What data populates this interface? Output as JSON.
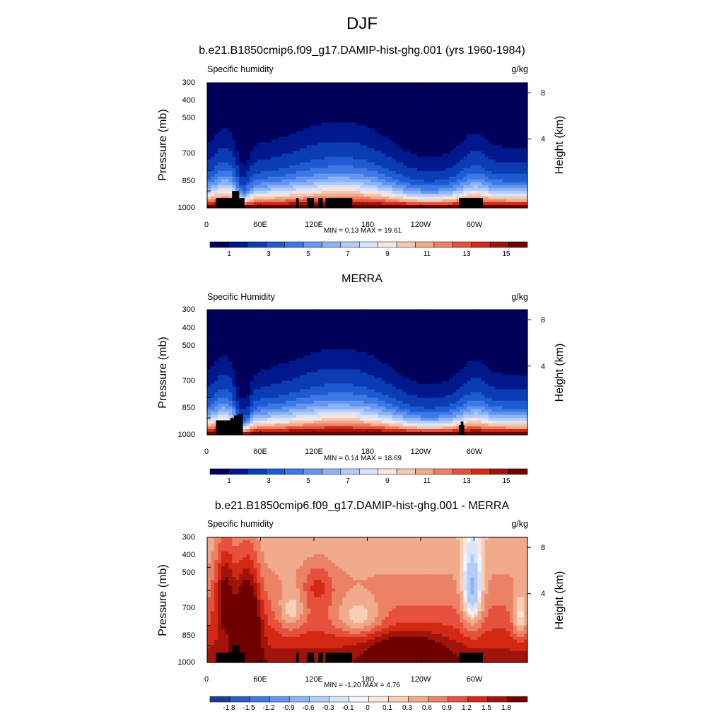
{
  "title": "DJF",
  "colors": {
    "bluered": [
      "#00005a",
      "#00188c",
      "#0a3cb4",
      "#1e5ad2",
      "#3c78e6",
      "#6496f0",
      "#8cb4f5",
      "#b4cdf8",
      "#d7e4fa",
      "#fae6dc",
      "#f5c8b4",
      "#f0aa8c",
      "#eb8264",
      "#e6503c",
      "#d22814",
      "#a0140a",
      "#6e0000"
    ],
    "diff": [
      "#1e3c96",
      "#2d5ac3",
      "#3c78e6",
      "#6496f0",
      "#8cb4f5",
      "#b4cdf8",
      "#d7e4fa",
      "#f5f5ff",
      "#fae6dc",
      "#f7cfb8",
      "#f0aa8c",
      "#eb8264",
      "#e6503c",
      "#d22814",
      "#a0140a",
      "#6e0000"
    ],
    "terrain": "#000000"
  },
  "chart_data": [
    {
      "type": "heatmap",
      "title": "b.e21.B1850cmip6.f09_g17.DAMIP-hist-ghg.001 (yrs 1960-1984)",
      "variable": "Specific humidity",
      "units": "g/kg",
      "ylabel": "Pressure (mb)",
      "y2label": "Height (km)",
      "x_ticks": [
        "0",
        "60E",
        "120E",
        "180",
        "120W",
        "60W"
      ],
      "y_ticks": [
        "300",
        "400",
        "500",
        "700",
        "850",
        "1000"
      ],
      "y2_ticks": [
        "8",
        "4"
      ],
      "min_label": "MIN =",
      "min_value": "0.13",
      "max_label": "MAX =",
      "max_value": "19.61",
      "colorbar_labels": [
        "1",
        "3",
        "5",
        "7",
        "9",
        "11",
        "13",
        "15"
      ],
      "mode": "abs",
      "terrain": "model"
    },
    {
      "type": "heatmap",
      "title": "MERRA",
      "variable": "Specific Humidity",
      "units": "g/kg",
      "ylabel": "Pressure (mb)",
      "y2label": "Height (km)",
      "x_ticks": [
        "0",
        "60E",
        "120E",
        "180",
        "120W",
        "60W"
      ],
      "y_ticks": [
        "300",
        "400",
        "500",
        "700",
        "850",
        "1000"
      ],
      "y2_ticks": [
        "8",
        "4"
      ],
      "min_label": "MIN =",
      "min_value": "0.14",
      "max_label": "MAX =",
      "max_value": "18.69",
      "colorbar_labels": [
        "1",
        "3",
        "5",
        "7",
        "9",
        "11",
        "13",
        "15"
      ],
      "mode": "abs",
      "terrain": "merra"
    },
    {
      "type": "heatmap",
      "title": "b.e21.B1850cmip6.f09_g17.DAMIP-hist-ghg.001 - MERRA",
      "variable": "Specific humidity",
      "units": "g/kg",
      "ylabel": "Pressure (mb)",
      "y2label": "Height (km)",
      "x_ticks": [
        "0",
        "60E",
        "120E",
        "180",
        "120W",
        "60W"
      ],
      "y_ticks": [
        "300",
        "400",
        "500",
        "700",
        "850",
        "1000"
      ],
      "y2_ticks": [
        "8",
        "4"
      ],
      "min_label": "MIN =",
      "min_value": "-1.20",
      "max_label": "MAX =",
      "max_value": "4.76",
      "colorbar_labels": [
        "-1.8",
        "-1.5",
        "-1.2",
        "-0.9",
        "-0.6",
        "-0.3",
        "-0.1",
        "0",
        "0.1",
        "0.3",
        "0.6",
        "0.9",
        "1.2",
        "1.5",
        "1.8"
      ],
      "mode": "diff",
      "terrain": "model"
    }
  ]
}
